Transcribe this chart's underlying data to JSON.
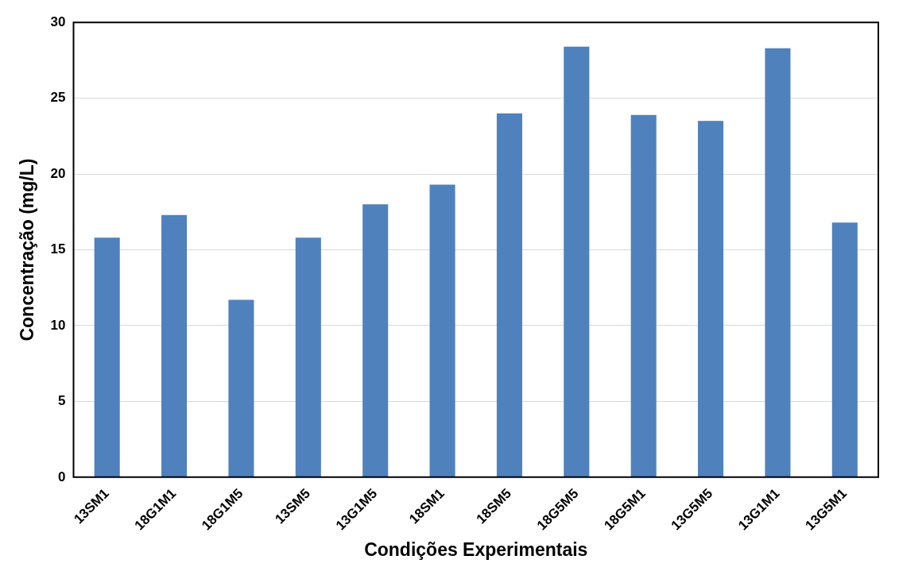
{
  "chart_data": {
    "type": "bar",
    "xlabel": "Condições Experimentais",
    "ylabel": "Concentração (mg/L)",
    "categories": [
      "13SM1",
      "18G1M1",
      "18G1M5",
      "13SM5",
      "13G1M5",
      "18SM1",
      "18SM5",
      "18G5M5",
      "18G5M1",
      "13G5M5",
      "13G1M1",
      "13G5M1"
    ],
    "values": [
      15.8,
      17.3,
      11.7,
      15.8,
      18.0,
      19.3,
      24.0,
      28.4,
      23.9,
      23.5,
      28.3,
      16.8
    ],
    "color": "#4f81bd",
    "ylim": [
      0,
      30
    ],
    "yticks": [
      0,
      5,
      10,
      15,
      20,
      25,
      30
    ],
    "grid": "y",
    "legend": false
  }
}
